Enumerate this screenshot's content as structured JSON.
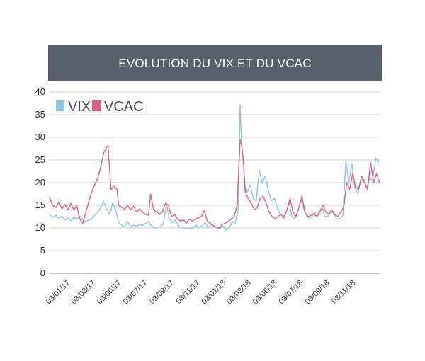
{
  "chart_data": {
    "type": "line",
    "title": "EVOLUTION DU VIX ET DU VCAC",
    "xlabel": "",
    "ylabel": "",
    "ylim": [
      0,
      40
    ],
    "yticks": [
      0,
      5,
      10,
      15,
      20,
      25,
      30,
      35,
      40
    ],
    "xlim": [
      "2016-11-15",
      "2018-12-31"
    ],
    "xtick_labels": [
      "03/01/17",
      "03/03/17",
      "03/05/17",
      "03/07/17",
      "03/09/17",
      "03/11/17",
      "03/01/18",
      "03/03/18",
      "03/05/18",
      "03/07/18",
      "03/09/18",
      "03/11/18"
    ],
    "xtick_dates": [
      "2017-01-03",
      "2017-03-03",
      "2017-05-03",
      "2017-07-03",
      "2017-09-03",
      "2017-11-03",
      "2018-01-03",
      "2018-03-03",
      "2018-05-03",
      "2018-07-03",
      "2018-09-03",
      "2018-11-03"
    ],
    "grid": true,
    "legend": "top-left",
    "series": [
      {
        "name": "VIX",
        "color": "#8fc3df",
        "points": [
          [
            "2016-11-15",
            13.0
          ],
          [
            "2016-11-22",
            12.3
          ],
          [
            "2016-11-30",
            12.8
          ],
          [
            "2016-12-07",
            12.1
          ],
          [
            "2016-12-14",
            12.6
          ],
          [
            "2016-12-21",
            11.8
          ],
          [
            "2016-12-28",
            12.2
          ],
          [
            "2017-01-04",
            11.6
          ],
          [
            "2017-01-11",
            12.4
          ],
          [
            "2017-01-18",
            11.9
          ],
          [
            "2017-01-25",
            12.6
          ],
          [
            "2017-02-01",
            11.8
          ],
          [
            "2017-02-08",
            11.4
          ],
          [
            "2017-02-15",
            11.8
          ],
          [
            "2017-02-22",
            12.0
          ],
          [
            "2017-03-01",
            12.8
          ],
          [
            "2017-03-08",
            13.5
          ],
          [
            "2017-03-15",
            14.5
          ],
          [
            "2017-03-22",
            15.8
          ],
          [
            "2017-03-29",
            14.2
          ],
          [
            "2017-04-05",
            13.0
          ],
          [
            "2017-04-12",
            15.5
          ],
          [
            "2017-04-19",
            14.0
          ],
          [
            "2017-04-26",
            11.2
          ],
          [
            "2017-05-03",
            10.6
          ],
          [
            "2017-05-10",
            10.3
          ],
          [
            "2017-05-17",
            11.5
          ],
          [
            "2017-05-24",
            10.2
          ],
          [
            "2017-05-31",
            10.6
          ],
          [
            "2017-06-07",
            10.4
          ],
          [
            "2017-06-14",
            10.8
          ],
          [
            "2017-06-21",
            10.5
          ],
          [
            "2017-06-28",
            11.0
          ],
          [
            "2017-07-05",
            11.4
          ],
          [
            "2017-07-12",
            10.5
          ],
          [
            "2017-07-19",
            10.0
          ],
          [
            "2017-07-26",
            10.2
          ],
          [
            "2017-08-02",
            10.3
          ],
          [
            "2017-08-09",
            11.0
          ],
          [
            "2017-08-16",
            15.2
          ],
          [
            "2017-08-23",
            12.0
          ],
          [
            "2017-08-30",
            11.2
          ],
          [
            "2017-09-06",
            11.8
          ],
          [
            "2017-09-13",
            10.5
          ],
          [
            "2017-09-20",
            10.2
          ],
          [
            "2017-09-27",
            9.9
          ],
          [
            "2017-10-04",
            9.8
          ],
          [
            "2017-10-11",
            9.9
          ],
          [
            "2017-10-18",
            10.1
          ],
          [
            "2017-10-25",
            10.6
          ],
          [
            "2017-11-01",
            10.0
          ],
          [
            "2017-11-08",
            10.5
          ],
          [
            "2017-11-15",
            11.2
          ],
          [
            "2017-11-22",
            10.0
          ],
          [
            "2017-11-29",
            10.8
          ],
          [
            "2017-12-06",
            10.5
          ],
          [
            "2017-12-13",
            10.0
          ],
          [
            "2017-12-20",
            9.8
          ],
          [
            "2017-12-27",
            10.5
          ],
          [
            "2018-01-03",
            9.5
          ],
          [
            "2018-01-10",
            10.0
          ],
          [
            "2018-01-17",
            11.5
          ],
          [
            "2018-01-24",
            11.0
          ],
          [
            "2018-01-31",
            13.5
          ],
          [
            "2018-02-05",
            37.2
          ],
          [
            "2018-02-08",
            29.0
          ],
          [
            "2018-02-12",
            25.5
          ],
          [
            "2018-02-16",
            19.5
          ],
          [
            "2018-02-22",
            18.0
          ],
          [
            "2018-03-01",
            19.5
          ],
          [
            "2018-03-08",
            16.5
          ],
          [
            "2018-03-15",
            16.0
          ],
          [
            "2018-03-22",
            22.8
          ],
          [
            "2018-03-29",
            19.8
          ],
          [
            "2018-04-05",
            21.5
          ],
          [
            "2018-04-12",
            18.5
          ],
          [
            "2018-04-19",
            16.0
          ],
          [
            "2018-04-26",
            16.5
          ],
          [
            "2018-05-03",
            14.5
          ],
          [
            "2018-05-10",
            13.0
          ],
          [
            "2018-05-17",
            12.5
          ],
          [
            "2018-05-24",
            13.5
          ],
          [
            "2018-05-31",
            15.5
          ],
          [
            "2018-06-07",
            12.5
          ],
          [
            "2018-06-14",
            12.0
          ],
          [
            "2018-06-21",
            14.0
          ],
          [
            "2018-06-28",
            16.0
          ],
          [
            "2018-07-05",
            14.0
          ],
          [
            "2018-07-12",
            12.5
          ],
          [
            "2018-07-19",
            12.2
          ],
          [
            "2018-07-26",
            12.8
          ],
          [
            "2018-08-02",
            13.5
          ],
          [
            "2018-08-09",
            13.2
          ],
          [
            "2018-08-16",
            14.5
          ],
          [
            "2018-08-23",
            12.5
          ],
          [
            "2018-08-30",
            12.5
          ],
          [
            "2018-09-06",
            13.8
          ],
          [
            "2018-09-13",
            13.0
          ],
          [
            "2018-09-20",
            12.0
          ],
          [
            "2018-09-27",
            12.0
          ],
          [
            "2018-10-04",
            12.8
          ],
          [
            "2018-10-11",
            24.8
          ],
          [
            "2018-10-18",
            20.0
          ],
          [
            "2018-10-25",
            24.2
          ],
          [
            "2018-11-01",
            19.0
          ],
          [
            "2018-11-08",
            17.5
          ],
          [
            "2018-11-15",
            20.5
          ],
          [
            "2018-11-22",
            20.8
          ],
          [
            "2018-11-29",
            18.8
          ],
          [
            "2018-12-06",
            21.0
          ],
          [
            "2018-12-13",
            20.5
          ],
          [
            "2018-12-20",
            25.5
          ],
          [
            "2018-12-27",
            24.5
          ]
        ]
      },
      {
        "name": "VCAC",
        "color": "#d9627f",
        "points": [
          [
            "2016-11-15",
            16.8
          ],
          [
            "2016-11-22",
            15.0
          ],
          [
            "2016-11-30",
            14.5
          ],
          [
            "2016-12-07",
            15.8
          ],
          [
            "2016-12-14",
            14.2
          ],
          [
            "2016-12-21",
            15.2
          ],
          [
            "2016-12-28",
            14.0
          ],
          [
            "2017-01-04",
            15.4
          ],
          [
            "2017-01-11",
            14.0
          ],
          [
            "2017-01-18",
            14.8
          ],
          [
            "2017-01-25",
            12.0
          ],
          [
            "2017-02-01",
            11.0
          ],
          [
            "2017-02-08",
            13.5
          ],
          [
            "2017-02-15",
            15.8
          ],
          [
            "2017-02-22",
            18.0
          ],
          [
            "2017-03-01",
            19.5
          ],
          [
            "2017-03-08",
            21.0
          ],
          [
            "2017-03-15",
            23.5
          ],
          [
            "2017-03-22",
            26.5
          ],
          [
            "2017-03-29",
            27.8
          ],
          [
            "2017-04-01",
            28.2
          ],
          [
            "2017-04-08",
            18.5
          ],
          [
            "2017-04-15",
            19.2
          ],
          [
            "2017-04-22",
            18.6
          ],
          [
            "2017-04-26",
            15.0
          ],
          [
            "2017-05-03",
            14.6
          ],
          [
            "2017-05-10",
            14.0
          ],
          [
            "2017-05-17",
            15.0
          ],
          [
            "2017-05-24",
            14.0
          ],
          [
            "2017-05-31",
            14.8
          ],
          [
            "2017-06-07",
            13.5
          ],
          [
            "2017-06-14",
            14.2
          ],
          [
            "2017-06-21",
            13.5
          ],
          [
            "2017-06-28",
            13.0
          ],
          [
            "2017-07-05",
            12.8
          ],
          [
            "2017-07-10",
            17.5
          ],
          [
            "2017-07-17",
            14.0
          ],
          [
            "2017-07-24",
            13.5
          ],
          [
            "2017-07-31",
            13.0
          ],
          [
            "2017-08-07",
            13.5
          ],
          [
            "2017-08-14",
            15.5
          ],
          [
            "2017-08-21",
            15.0
          ],
          [
            "2017-08-28",
            12.5
          ],
          [
            "2017-09-04",
            13.0
          ],
          [
            "2017-09-11",
            12.0
          ],
          [
            "2017-09-18",
            11.5
          ],
          [
            "2017-09-25",
            11.8
          ],
          [
            "2017-10-02",
            11.0
          ],
          [
            "2017-10-09",
            12.0
          ],
          [
            "2017-10-16",
            11.5
          ],
          [
            "2017-10-23",
            12.0
          ],
          [
            "2017-10-30",
            12.2
          ],
          [
            "2017-11-06",
            12.5
          ],
          [
            "2017-11-13",
            13.8
          ],
          [
            "2017-11-20",
            11.5
          ],
          [
            "2017-11-27",
            11.0
          ],
          [
            "2017-12-04",
            10.5
          ],
          [
            "2017-12-11",
            10.2
          ],
          [
            "2017-12-18",
            10.0
          ],
          [
            "2017-12-25",
            10.8
          ],
          [
            "2018-01-01",
            11.0
          ],
          [
            "2018-01-08",
            11.5
          ],
          [
            "2018-01-15",
            12.0
          ],
          [
            "2018-01-22",
            12.5
          ],
          [
            "2018-01-29",
            15.0
          ],
          [
            "2018-02-05",
            29.5
          ],
          [
            "2018-02-09",
            28.0
          ],
          [
            "2018-02-13",
            24.5
          ],
          [
            "2018-02-17",
            18.0
          ],
          [
            "2018-02-24",
            16.5
          ],
          [
            "2018-03-03",
            15.5
          ],
          [
            "2018-03-10",
            14.0
          ],
          [
            "2018-03-17",
            14.5
          ],
          [
            "2018-03-24",
            16.5
          ],
          [
            "2018-03-31",
            17.0
          ],
          [
            "2018-04-07",
            15.5
          ],
          [
            "2018-04-14",
            13.5
          ],
          [
            "2018-04-21",
            12.5
          ],
          [
            "2018-04-28",
            12.0
          ],
          [
            "2018-05-05",
            12.5
          ],
          [
            "2018-05-12",
            13.0
          ],
          [
            "2018-05-19",
            12.2
          ],
          [
            "2018-05-26",
            14.0
          ],
          [
            "2018-06-02",
            16.5
          ],
          [
            "2018-06-09",
            13.5
          ],
          [
            "2018-06-16",
            12.5
          ],
          [
            "2018-06-23",
            14.5
          ],
          [
            "2018-06-30",
            17.0
          ],
          [
            "2018-07-07",
            13.5
          ],
          [
            "2018-07-14",
            12.5
          ],
          [
            "2018-07-21",
            12.8
          ],
          [
            "2018-07-28",
            13.2
          ],
          [
            "2018-08-04",
            12.5
          ],
          [
            "2018-08-11",
            13.5
          ],
          [
            "2018-08-18",
            15.0
          ],
          [
            "2018-08-25",
            13.5
          ],
          [
            "2018-09-01",
            13.0
          ],
          [
            "2018-09-08",
            14.0
          ],
          [
            "2018-09-15",
            13.0
          ],
          [
            "2018-09-22",
            12.5
          ],
          [
            "2018-09-29",
            13.5
          ],
          [
            "2018-10-06",
            14.5
          ],
          [
            "2018-10-13",
            20.0
          ],
          [
            "2018-10-20",
            18.5
          ],
          [
            "2018-10-27",
            22.0
          ],
          [
            "2018-11-03",
            19.0
          ],
          [
            "2018-11-10",
            18.5
          ],
          [
            "2018-11-17",
            21.5
          ],
          [
            "2018-11-24",
            20.0
          ],
          [
            "2018-12-01",
            18.5
          ],
          [
            "2018-12-08",
            24.5
          ],
          [
            "2018-12-15",
            20.0
          ],
          [
            "2018-12-22",
            22.0
          ],
          [
            "2018-12-29",
            20.0
          ]
        ]
      }
    ]
  }
}
